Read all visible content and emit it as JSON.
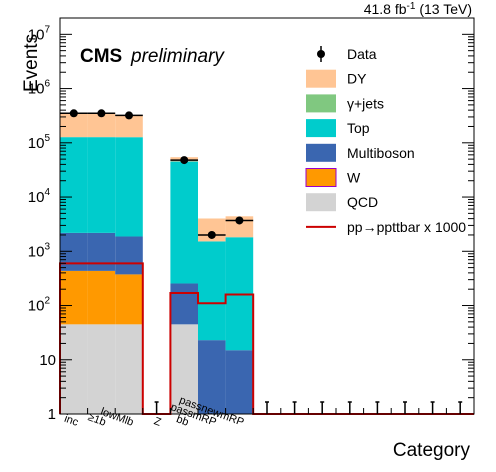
{
  "chart_data": {
    "type": "bar",
    "stacked": true,
    "y_scale": "log",
    "ylim": [
      1,
      20000000
    ],
    "ylabel": "Events",
    "xlabel": "Category",
    "lumi_text": "41.8 fb",
    "lumi_sup": "-1",
    "lumi_energy": " (13 TeV)",
    "experiment": "CMS",
    "status": "preliminary",
    "y_tick_labels": [
      "1",
      "10",
      "10",
      "10",
      "10",
      "10",
      "10",
      "10"
    ],
    "y_tick_exponents": [
      "",
      "",
      "2",
      "3",
      "4",
      "5",
      "6",
      "7"
    ],
    "categories": [
      "inc",
      "≥1b",
      "lowMlb",
      "Z",
      "bb",
      "passmRP",
      "passnewmRP",
      "",
      "",
      "",
      "",
      "",
      "",
      "",
      ""
    ],
    "series": [
      {
        "name": "QCD",
        "color": "#d3d3d3",
        "values": [
          45,
          45,
          45,
          0,
          45,
          0,
          0,
          0,
          0,
          0,
          0,
          0,
          0,
          0,
          0
        ]
      },
      {
        "name": "W",
        "color": "#ff9900",
        "values": [
          390,
          390,
          330,
          0,
          0,
          0,
          0,
          0,
          0,
          0,
          0,
          0,
          0,
          0,
          0
        ]
      },
      {
        "name": "Multiboson",
        "color": "#3a66b0",
        "values": [
          1750,
          1750,
          1500,
          0,
          210,
          23,
          15,
          0,
          0,
          0,
          0,
          0,
          0,
          0,
          0
        ]
      },
      {
        "name": "Top",
        "color": "#00cccc",
        "values": [
          125000,
          125000,
          125000,
          0,
          45000,
          1500,
          1800,
          0,
          0,
          0,
          0,
          0,
          0,
          0,
          0
        ]
      },
      {
        "name": "γ+jets",
        "color": "#80c880",
        "values": [
          0,
          0,
          0,
          0,
          0,
          0,
          0,
          0,
          0,
          0,
          0,
          0,
          0,
          0,
          0
        ]
      },
      {
        "name": "DY",
        "color": "#ffc594",
        "values": [
          230000,
          230000,
          200000,
          0,
          9000,
          2500,
          2600,
          0,
          0,
          0,
          0,
          0,
          0,
          0,
          0
        ]
      }
    ],
    "signal": {
      "name": "pp→ppttbar x 1000",
      "color": "#cc0000",
      "values": [
        600,
        600,
        600,
        0,
        170,
        110,
        160,
        0,
        0,
        0,
        0,
        0,
        0,
        0,
        0
      ]
    },
    "data": {
      "name": "Data",
      "values": [
        350000,
        350000,
        320000,
        null,
        48000,
        2000,
        3700,
        null,
        null,
        null,
        null,
        null,
        null,
        null,
        null
      ],
      "errors": [
        0,
        0,
        0,
        0,
        0,
        0,
        0,
        0,
        0,
        0,
        0,
        0,
        0,
        0,
        0
      ]
    },
    "legend_position": "top-right",
    "grid": false
  }
}
